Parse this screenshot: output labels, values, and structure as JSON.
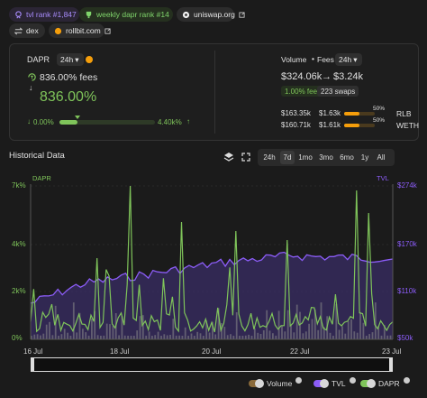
{
  "header": {
    "tvl_rank": "tvl rank #1,847",
    "weekly_rank": "weekly dapr rank #14",
    "exchange": "uniswap.org",
    "type": "dex",
    "site": "rollbit.com"
  },
  "dapr_card": {
    "label": "DAPR",
    "period": "24h",
    "fees_value": "836.00% fees",
    "big_value": "836.00%",
    "range_min": "0.00%",
    "range_max": "4.40k%",
    "range_marker": 0.19
  },
  "volume_card": {
    "label": "Volume",
    "arrow": "•",
    "fees_label": "Fees",
    "period": "24h",
    "volume_value": "$324.06k",
    "fees_arrow": "→",
    "fees_value": "$3.24k",
    "fee_tier": "1.00% fee",
    "swaps": "223 swaps",
    "tokens": [
      {
        "amount": "$163.35k",
        "fees": "$1.63k",
        "pct": "50%",
        "symbol": "RLB",
        "share": 0.5
      },
      {
        "amount": "$160.71k",
        "fees": "$1.61k",
        "pct": "50%",
        "symbol": "WETH",
        "share": 0.5
      }
    ]
  },
  "historical": {
    "title": "Historical Data",
    "timeframes": [
      "24h",
      "7d",
      "1mo",
      "3mo",
      "6mo",
      "1y",
      "All"
    ],
    "active_timeframe": "7d"
  },
  "chart_data": {
    "type": "line",
    "x_labels": [
      "16 Jul",
      "18 Jul",
      "20 Jul",
      "22 Jul",
      "23 Jul"
    ],
    "left_axis": {
      "label": "DAPR",
      "ticks": [
        "7k%",
        "4k%",
        "2k%",
        "0%"
      ],
      "range": [
        0,
        7000
      ]
    },
    "right_axis": {
      "label": "TVL",
      "ticks": [
        "$274k",
        "$170k",
        "$110k",
        "$50k"
      ],
      "range": [
        50000,
        274000
      ]
    },
    "series": [
      {
        "name": "Volume",
        "color": "#9a9a9a"
      },
      {
        "name": "TVL",
        "color": "#8b5cf6"
      },
      {
        "name": "DAPR",
        "color": "#7fc45a"
      }
    ]
  },
  "legend": {
    "volume": "Volume",
    "tvl": "TVL",
    "dapr": "DAPR"
  },
  "colors": {
    "purple": "#8b5cf6",
    "green": "#7fc45a",
    "orange": "#f59e0b"
  }
}
